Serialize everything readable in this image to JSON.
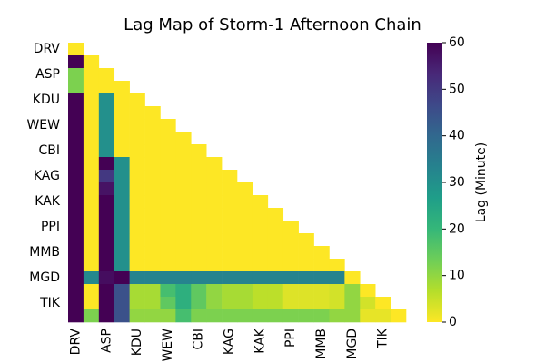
{
  "chart_data": {
    "type": "heatmap",
    "title": "Lag Map of Storm-1 Afternoon Chain",
    "categories": [
      "DRV",
      null,
      "ASP",
      null,
      "KDU",
      null,
      "WEW",
      null,
      "CBI",
      null,
      "KAG",
      null,
      "KAK",
      null,
      "PPI",
      null,
      "MMB",
      null,
      "MGD",
      null,
      "TIK",
      null
    ],
    "values": [
      [
        0
      ],
      [
        60,
        0
      ],
      [
        12,
        0,
        0
      ],
      [
        12,
        0,
        0,
        0
      ],
      [
        60,
        0,
        30,
        0,
        0
      ],
      [
        60,
        0,
        30,
        0,
        0,
        0
      ],
      [
        60,
        0,
        30,
        0,
        0,
        0,
        0
      ],
      [
        60,
        0,
        30,
        0,
        0,
        0,
        0,
        0
      ],
      [
        60,
        0,
        30,
        0,
        0,
        0,
        0,
        0,
        0
      ],
      [
        60,
        0,
        60,
        30,
        0,
        0,
        0,
        0,
        0,
        0
      ],
      [
        60,
        0,
        50,
        30,
        0,
        0,
        0,
        0,
        0,
        0,
        0
      ],
      [
        60,
        0,
        57,
        30,
        0,
        0,
        0,
        0,
        0,
        0,
        0,
        0
      ],
      [
        60,
        0,
        60,
        30,
        0,
        0,
        0,
        0,
        0,
        0,
        0,
        0,
        0
      ],
      [
        60,
        0,
        60,
        30,
        0,
        0,
        0,
        0,
        0,
        0,
        0,
        0,
        0,
        0
      ],
      [
        60,
        0,
        60,
        30,
        0,
        0,
        0,
        0,
        0,
        0,
        0,
        0,
        0,
        0,
        0
      ],
      [
        60,
        0,
        60,
        30,
        0,
        0,
        0,
        0,
        0,
        0,
        0,
        0,
        0,
        0,
        0,
        0
      ],
      [
        60,
        0,
        60,
        30,
        0,
        0,
        0,
        0,
        0,
        0,
        0,
        0,
        0,
        0,
        0,
        0,
        0
      ],
      [
        60,
        0,
        60,
        30,
        0,
        0,
        0,
        0,
        0,
        0,
        0,
        0,
        0,
        0,
        0,
        0,
        0,
        0
      ],
      [
        60,
        32,
        58,
        60,
        33,
        33,
        33,
        33,
        33,
        33,
        33,
        33,
        33,
        33,
        33,
        33,
        33,
        33,
        0
      ],
      [
        60,
        0,
        60,
        45,
        8,
        8,
        18,
        22,
        15,
        10,
        8,
        8,
        6,
        6,
        3,
        3,
        3,
        4,
        10,
        0
      ],
      [
        60,
        0,
        60,
        45,
        8,
        8,
        15,
        22,
        15,
        10,
        8,
        8,
        6,
        6,
        3,
        3,
        3,
        4,
        10,
        4,
        0
      ],
      [
        60,
        12,
        60,
        45,
        10,
        10,
        10,
        18,
        12,
        12,
        12,
        12,
        12,
        12,
        12,
        12,
        12,
        10,
        10,
        2,
        2,
        0
      ]
    ],
    "colorbar_label": "Lag (Minute)",
    "clim": [
      0,
      60
    ],
    "cticks": [
      0,
      10,
      20,
      30,
      40,
      50,
      60
    ],
    "colormap": [
      "#440154",
      "#482878",
      "#3e4989",
      "#31688e",
      "#26828e",
      "#1f9e89",
      "#35b779",
      "#6ece58",
      "#b5de2b",
      "#fde725"
    ]
  }
}
